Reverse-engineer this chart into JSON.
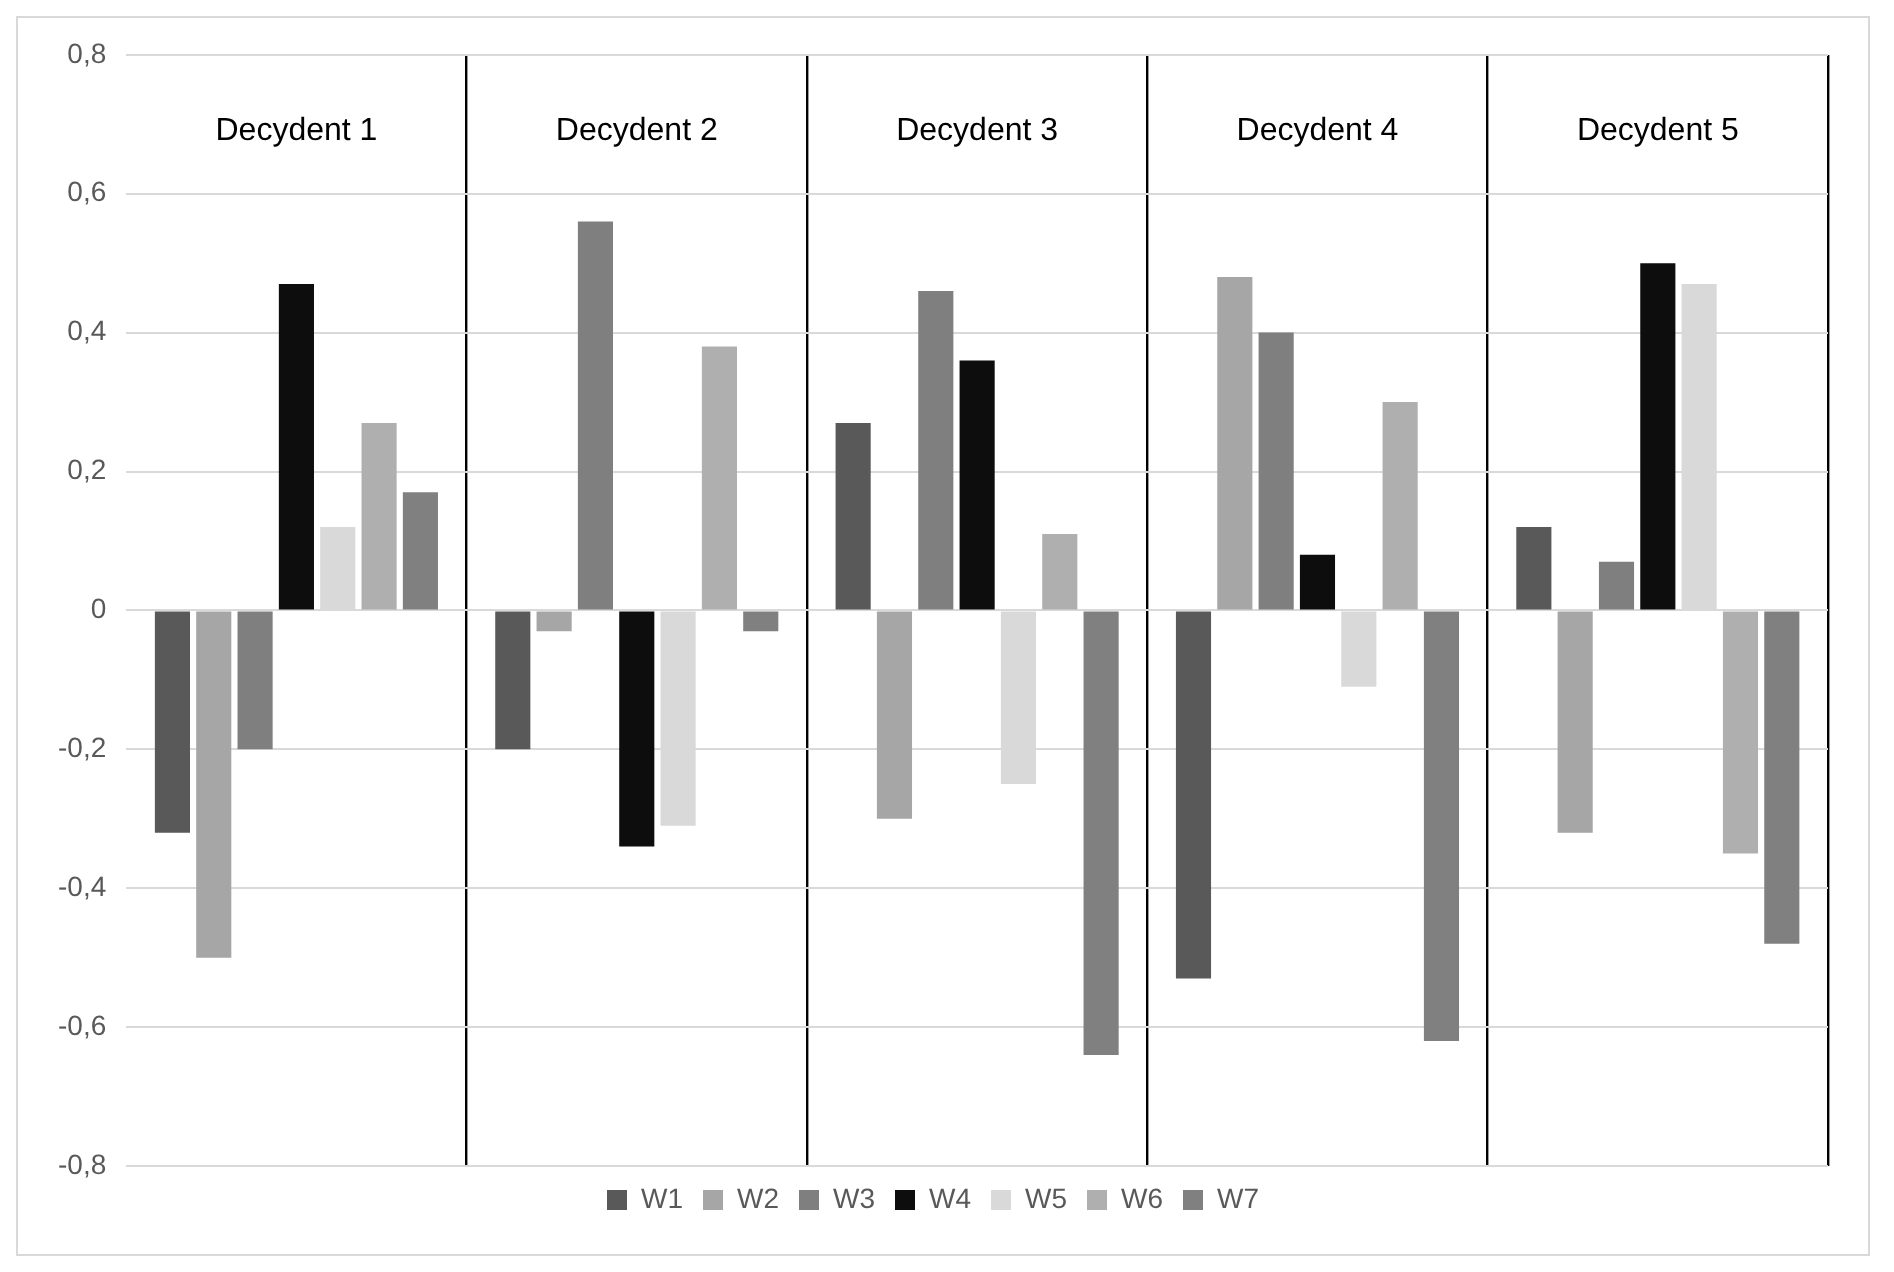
{
  "chart_data": {
    "type": "bar",
    "categories": [
      "Decydent 1",
      "Decydent 2",
      "Decydent 3",
      "Decydent 4",
      "Decydent 5"
    ],
    "series": [
      {
        "name": "W1",
        "color": "#595959",
        "values": [
          -0.32,
          -0.2,
          0.27,
          -0.53,
          0.12
        ]
      },
      {
        "name": "W2",
        "color": "#a6a6a6",
        "values": [
          -0.5,
          -0.03,
          -0.3,
          0.48,
          -0.32
        ]
      },
      {
        "name": "W3",
        "color": "#7f7f7f",
        "values": [
          -0.2,
          0.56,
          0.46,
          0.4,
          0.07
        ]
      },
      {
        "name": "W4",
        "color": "#0d0d0d",
        "values": [
          0.47,
          -0.34,
          0.36,
          0.08,
          0.5
        ]
      },
      {
        "name": "W5",
        "color": "#d9d9d9",
        "values": [
          0.12,
          -0.31,
          -0.25,
          -0.11,
          0.47
        ]
      },
      {
        "name": "W6",
        "color": "#afafaf",
        "values": [
          0.27,
          0.38,
          0.11,
          0.3,
          -0.35
        ]
      },
      {
        "name": "W7",
        "color": "#808080",
        "values": [
          0.17,
          -0.03,
          -0.64,
          -0.62,
          -0.48
        ]
      }
    ],
    "ylim": [
      -0.8,
      0.8
    ],
    "yticks": [
      {
        "value": -0.8,
        "label": "-0,8"
      },
      {
        "value": -0.6,
        "label": "-0,6"
      },
      {
        "value": -0.4,
        "label": "-0,4"
      },
      {
        "value": -0.2,
        "label": "-0,2"
      },
      {
        "value": 0,
        "label": "0"
      },
      {
        "value": 0.2,
        "label": "0,2"
      },
      {
        "value": 0.4,
        "label": "0,4"
      },
      {
        "value": 0.6,
        "label": "0,6"
      },
      {
        "value": 0.8,
        "label": "0,8"
      }
    ],
    "grid": true,
    "legend": "bottom"
  }
}
